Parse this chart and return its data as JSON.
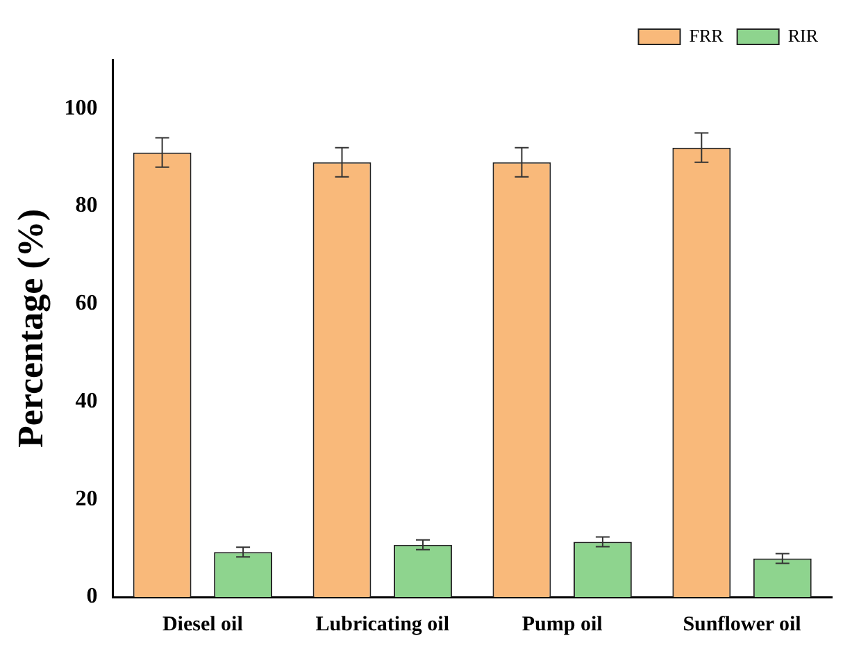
{
  "chart_data": {
    "type": "bar",
    "ylabel": "Percentage (%)",
    "categories": [
      "Diesel oil",
      "Lubricating oil",
      "Pump oil",
      "Sunflower oil"
    ],
    "series": [
      {
        "name": "FRR",
        "color": "#f9b97a",
        "values": [
          91,
          89,
          89,
          92
        ],
        "errors": [
          3,
          3,
          3,
          3
        ]
      },
      {
        "name": "RIR",
        "color": "#8ed48e",
        "values": [
          9.2,
          10.7,
          11.3,
          7.9
        ],
        "errors": [
          1,
          1,
          1,
          1
        ]
      }
    ],
    "ylim": [
      0,
      110
    ],
    "yticks": [
      0,
      20,
      40,
      60,
      80,
      100
    ],
    "grid": false,
    "legend": "top right"
  }
}
